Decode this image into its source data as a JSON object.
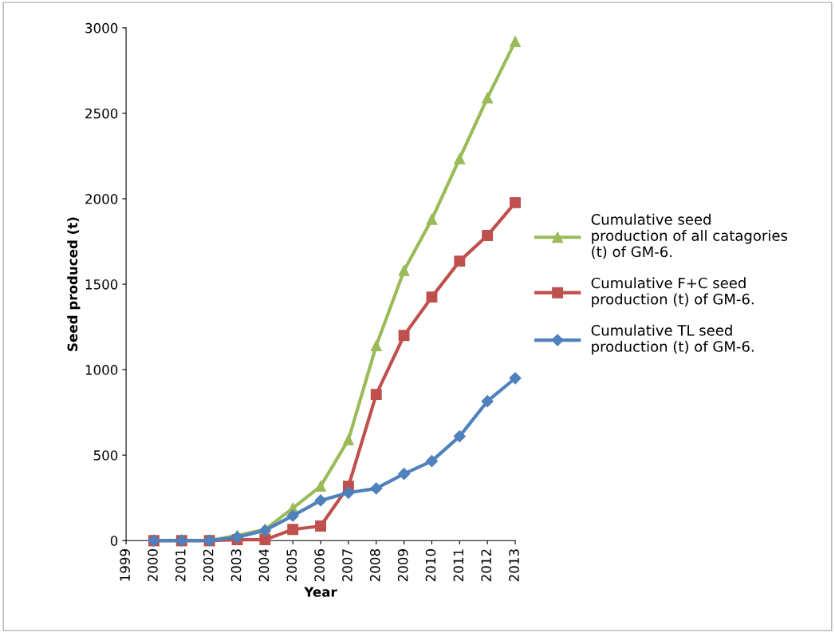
{
  "chart_data": {
    "type": "line",
    "xlabel": "Year",
    "ylabel": "Seed produced (t)",
    "x": [
      2000,
      2001,
      2002,
      2003,
      2004,
      2005,
      2006,
      2007,
      2008,
      2009,
      2010,
      2011,
      2012,
      2013
    ],
    "series": [
      {
        "name": "Cumulative seed\nproduction of all catagories\n(t) of GM-6.",
        "color": "#9bbb59",
        "marker": "triangle",
        "values": [
          0,
          0,
          0,
          30,
          65,
          190,
          318,
          590,
          1140,
          1580,
          1880,
          2235,
          2590,
          2920
        ]
      },
      {
        "name": "Cumulative F+C seed\nproduction (t) of GM-6.",
        "color": "#c0504d",
        "marker": "square",
        "values": [
          0,
          0,
          0,
          5,
          5,
          65,
          85,
          318,
          855,
          1200,
          1425,
          1635,
          1785,
          1977
        ]
      },
      {
        "name": "Cumulative TL seed\nproduction (t) of GM-6.",
        "color": "#4f81bd",
        "marker": "diamond",
        "values": [
          0,
          0,
          0,
          20,
          60,
          145,
          235,
          280,
          305,
          390,
          465,
          610,
          815,
          950
        ]
      }
    ],
    "xlim": [
      1999,
      2013
    ],
    "xticks": [
      1999,
      2000,
      2001,
      2002,
      2003,
      2004,
      2005,
      2006,
      2007,
      2008,
      2009,
      2010,
      2011,
      2012,
      2013
    ],
    "ylim": [
      0,
      3000
    ],
    "yticks": [
      0,
      500,
      1000,
      1500,
      2000,
      2500,
      3000
    ],
    "grid": false,
    "legend": "right",
    "line_style": "solid"
  }
}
